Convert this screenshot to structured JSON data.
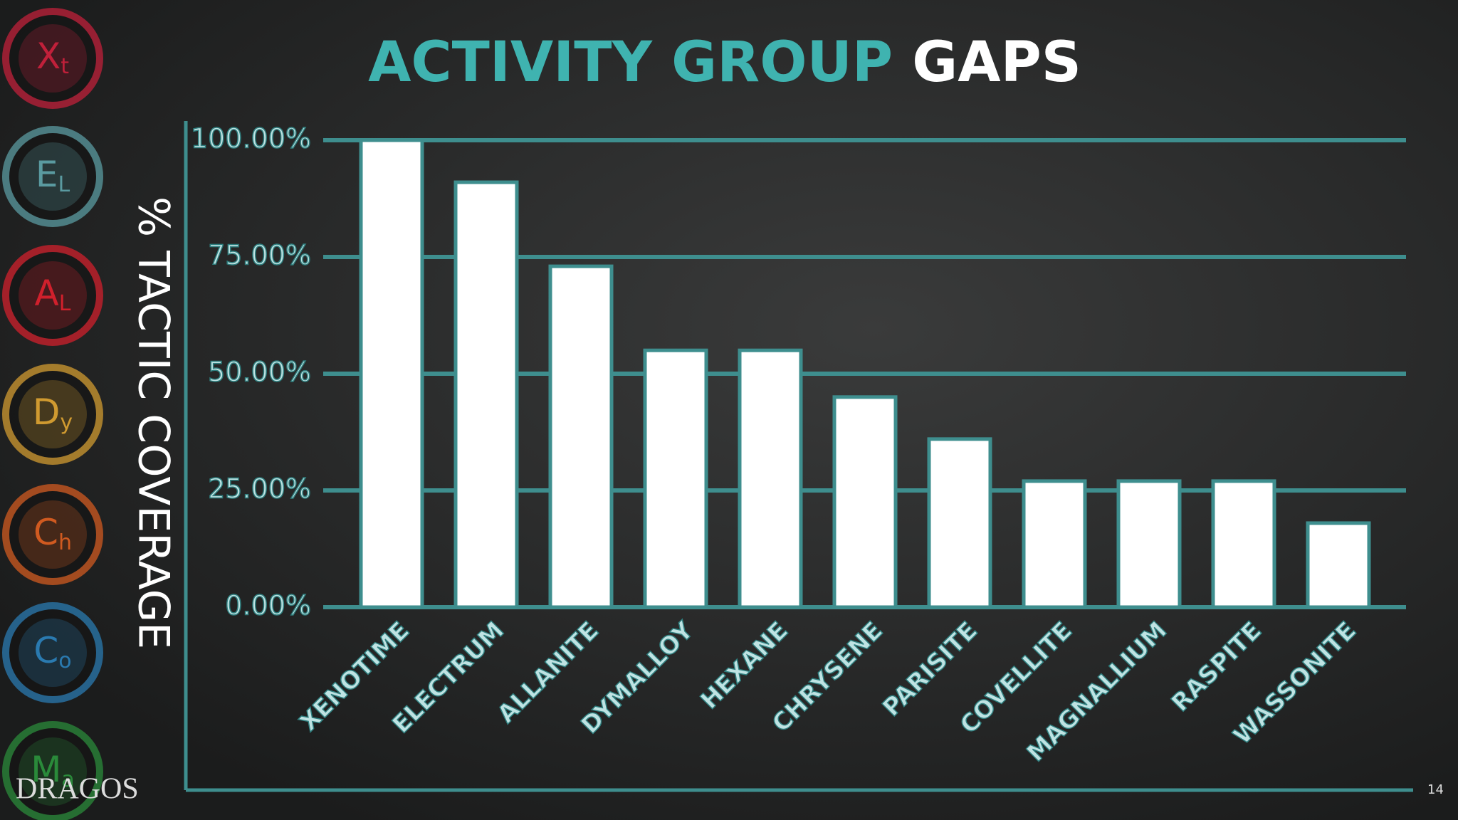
{
  "chart_data": {
    "type": "bar",
    "title": [
      "ACTIVITY GROUP",
      "GAPS"
    ],
    "y_label": "% TACTIC COVERAGE",
    "categories": [
      "XENOTIME",
      "ELECTRUM",
      "ALLANITE",
      "DYMALLOY",
      "HEXANE",
      "CHRYSENE",
      "PARISITE",
      "COVELLITE",
      "MAGNALLIUM",
      "RASPITE",
      "WASSONITE"
    ],
    "values": [
      100,
      91,
      73,
      55,
      55,
      45,
      36,
      27,
      27,
      27,
      18
    ],
    "color": "#ffffff",
    "ylim": [
      0,
      100
    ],
    "yticks": [
      {
        "value": 0,
        "label": "0.00%"
      },
      {
        "value": 25,
        "label": "25.00%"
      },
      {
        "value": 50,
        "label": "50.00%"
      },
      {
        "value": 75,
        "label": "75.00%"
      },
      {
        "value": 100,
        "label": "100.00%"
      }
    ],
    "grid": true
  },
  "sidebar": [
    {
      "symbol": "X",
      "sub": "t",
      "color": "#c0203a"
    },
    {
      "symbol": "E",
      "sub": "L",
      "color": "#5a9aa0"
    },
    {
      "symbol": "A",
      "sub": "L",
      "color": "#d0202c"
    },
    {
      "symbol": "D",
      "sub": "y",
      "color": "#d09a30"
    },
    {
      "symbol": "C",
      "sub": "h",
      "color": "#d05a20"
    },
    {
      "symbol": "C",
      "sub": "o",
      "color": "#2a7ab0"
    },
    {
      "symbol": "M",
      "sub": "a",
      "color": "#2a8a3a"
    }
  ],
  "logo": "DRAGOS",
  "page_number": "14"
}
